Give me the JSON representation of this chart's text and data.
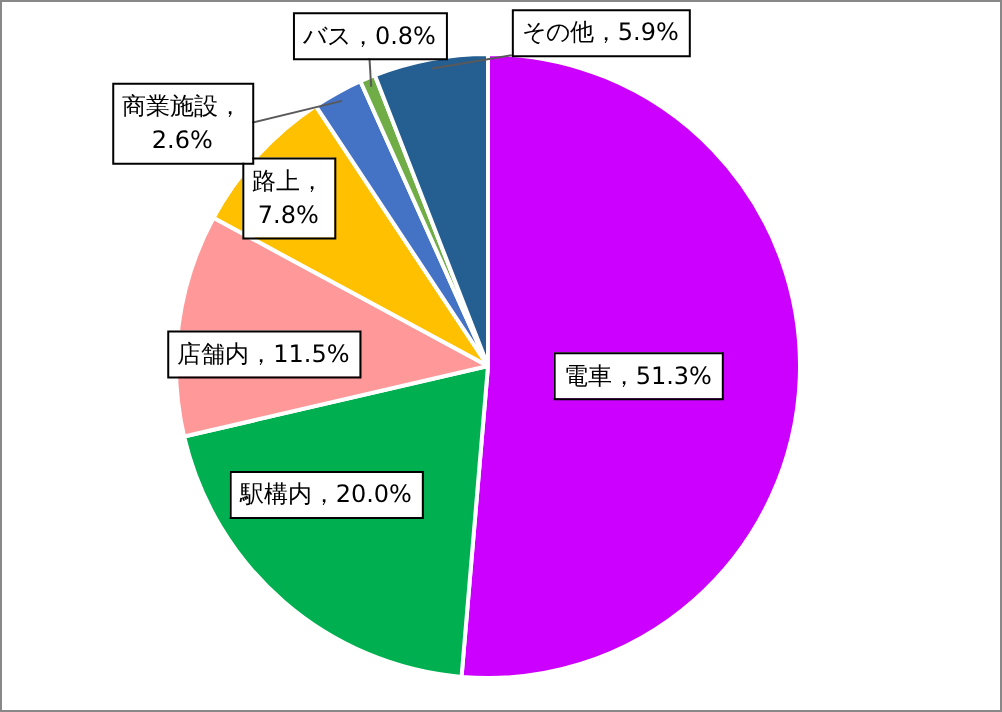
{
  "chart_data": {
    "type": "pie",
    "categories": [
      "電車",
      "駅構内",
      "店舗内",
      "路上",
      "商業施設",
      "バス",
      "その他"
    ],
    "values": [
      51.3,
      20.0,
      11.5,
      7.8,
      2.6,
      0.8,
      5.9
    ],
    "colors": [
      "#cc00ff",
      "#00b050",
      "#ff9999",
      "#ffc000",
      "#4472c4",
      "#70ad47",
      "#255e91"
    ],
    "value_labels": [
      "，51.3%",
      "，20.0%",
      "，11.5%",
      "，7.8%",
      "，2.6%",
      "，0.8%",
      "，5.9%"
    ],
    "legend": false
  }
}
